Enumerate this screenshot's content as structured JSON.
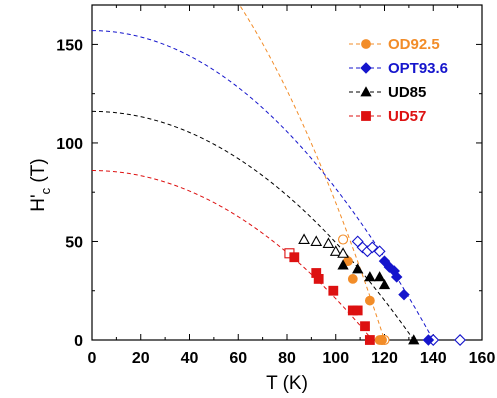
{
  "chart_data": {
    "type": "scatter",
    "xlabel": "T (K)",
    "ylabel": {
      "main": "H",
      "prime": "'",
      "sub": "c",
      "unit": "(T)"
    },
    "xlim": [
      0,
      160
    ],
    "ylim": [
      0,
      170
    ],
    "xticks": [
      0,
      20,
      40,
      60,
      80,
      100,
      120,
      140,
      160
    ],
    "yticks": [
      0,
      50,
      100,
      150
    ],
    "grid": false,
    "legend_position": "top-right",
    "series": [
      {
        "name": "OD92.5",
        "color": "#f28c28",
        "marker": "circle",
        "filled_points": [
          [
            105,
            40
          ],
          [
            107,
            31
          ],
          [
            114,
            20
          ],
          [
            118,
            0
          ],
          [
            119,
            0
          ]
        ],
        "open_points": [
          [
            103,
            51
          ],
          [
            119,
            0
          ],
          [
            120,
            0
          ]
        ],
        "fit": {
          "Hc0": 228,
          "Tc": 120
        }
      },
      {
        "name": "OPT93.6",
        "color": "#1515cc",
        "marker": "diamond",
        "filled_points": [
          [
            120,
            40
          ],
          [
            122,
            37
          ],
          [
            124,
            35
          ],
          [
            125,
            32
          ],
          [
            128,
            23
          ],
          [
            138,
            0
          ]
        ],
        "open_points": [
          [
            109,
            50
          ],
          [
            111,
            47
          ],
          [
            113,
            45
          ],
          [
            115,
            47
          ],
          [
            118,
            45
          ],
          [
            140,
            0
          ],
          [
            151,
            0
          ]
        ],
        "fit": {
          "Hc0": 157,
          "Tc": 140
        }
      },
      {
        "name": "UD85",
        "color": "#000000",
        "marker": "triangle",
        "filled_points": [
          [
            103,
            38
          ],
          [
            109,
            36
          ],
          [
            114,
            32
          ],
          [
            118,
            32
          ],
          [
            120,
            28
          ],
          [
            132,
            0
          ]
        ],
        "open_points": [
          [
            87,
            51
          ],
          [
            92,
            50
          ],
          [
            97,
            49
          ],
          [
            100,
            45
          ],
          [
            103,
            44
          ]
        ],
        "fit": {
          "Hc0": 116,
          "Tc": 132
        }
      },
      {
        "name": "UD57",
        "color": "#dd1111",
        "marker": "square",
        "filled_points": [
          [
            83,
            42
          ],
          [
            92,
            34
          ],
          [
            93,
            31
          ],
          [
            99,
            25
          ],
          [
            107,
            15
          ],
          [
            109,
            15
          ],
          [
            112,
            7
          ],
          [
            114,
            0
          ]
        ],
        "open_points": [
          [
            81,
            44
          ]
        ],
        "fit": {
          "Hc0": 86,
          "Tc": 115
        }
      }
    ]
  }
}
